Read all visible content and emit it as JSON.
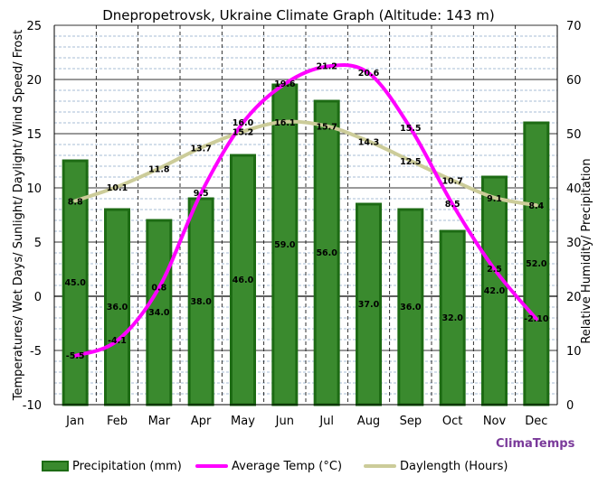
{
  "chart_data": {
    "type": "bar+line",
    "title": "Dnepropetrovsk, Ukraine Climate Graph (Altitude: 143 m)",
    "ylabel_left": "Temperatures/ Wet Days/ Sunlight/ Daylight/ Wind Speed/ Frost",
    "ylabel_right": "Relative Humidity/  Precipitation",
    "ylim_left": [
      -10,
      25
    ],
    "ylim_right": [
      0,
      70
    ],
    "yticks_left": [
      "25",
      "20",
      "15",
      "10",
      "5",
      "0",
      "-5",
      "-10"
    ],
    "yticks_right": [
      "70",
      "60",
      "50",
      "40",
      "30",
      "20",
      "10",
      "0"
    ],
    "categories": [
      "Jan",
      "Feb",
      "Mar",
      "Apr",
      "May",
      "Jun",
      "Jul",
      "Aug",
      "Sep",
      "Oct",
      "Nov",
      "Dec"
    ],
    "series": [
      {
        "name": "Precipitation (mm)",
        "type": "bar",
        "axis": "right",
        "color": "#3a8a2e",
        "border": "#1d6b14",
        "values": [
          45.0,
          36.0,
          34.0,
          38.0,
          46.0,
          59.0,
          56.0,
          37.0,
          36.0,
          32.0,
          42.0,
          52.0
        ],
        "labels": [
          "45.0",
          "36.0",
          "34.0",
          "38.0",
          "46.0",
          "59.0",
          "56.0",
          "37.0",
          "36.0",
          "32.0",
          "42.0",
          "52.0"
        ]
      },
      {
        "name": "Average Temp (°C)",
        "type": "line",
        "axis": "left",
        "color": "#ff00ff",
        "values": [
          -5.5,
          -4.1,
          0.8,
          9.5,
          16.0,
          19.6,
          21.2,
          20.6,
          15.5,
          8.5,
          2.5,
          -2.1
        ],
        "labels": [
          "-5.5",
          "-4.1",
          "0.8",
          "9.5",
          "16.0",
          "19.6",
          "21.2",
          "20.6",
          "15.5",
          "8.5",
          "2.5",
          "-2.10"
        ]
      },
      {
        "name": "Daylength (Hours)",
        "type": "line",
        "axis": "left",
        "color": "#cccc99",
        "values": [
          8.8,
          10.1,
          11.8,
          13.7,
          15.2,
          16.1,
          15.7,
          14.3,
          12.5,
          10.7,
          9.1,
          8.4
        ],
        "labels": [
          "8.8",
          "10.1",
          "11.8",
          "13.7",
          "15.2",
          "16.1",
          "15.7",
          "14.3",
          "12.5",
          "10.7",
          "9.1",
          "8.4"
        ]
      }
    ],
    "legend": {
      "placement": "bottom",
      "precip_label": "Precipitation (mm)",
      "temp_label": "Average Temp (°C)",
      "day_label": "Daylength (Hours)"
    },
    "brand": "ClimaTemps",
    "grid": true
  }
}
